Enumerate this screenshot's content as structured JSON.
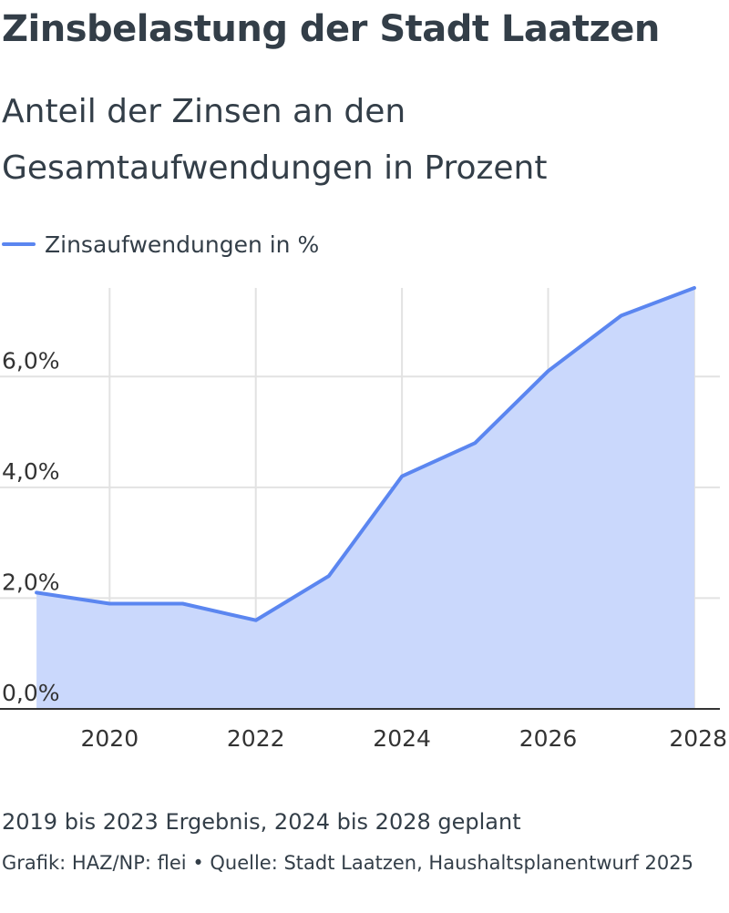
{
  "title": "Zinsbelastung der Stadt Laatzen",
  "subtitle": "Anteil der Zinsen an den Gesamtaufwendungen in Prozent",
  "legend": {
    "label": "Zinsaufwendungen in %",
    "color": "#5b86f0"
  },
  "chart_data": {
    "type": "area",
    "title": "Zinsbelastung der Stadt Laatzen",
    "subtitle": "Anteil der Zinsen an den Gesamtaufwendungen in Prozent",
    "xlabel": "",
    "ylabel": "",
    "x": [
      2019,
      2020,
      2021,
      2022,
      2023,
      2024,
      2025,
      2026,
      2027,
      2028
    ],
    "series": [
      {
        "name": "Zinsaufwendungen in %",
        "values": [
          2.1,
          1.9,
          1.9,
          1.6,
          2.4,
          4.2,
          4.8,
          6.1,
          7.1,
          7.6
        ],
        "color": "#5b86f0",
        "fill_color": "#cad8fc"
      }
    ],
    "xlim": [
      2018.5,
      2028.35
    ],
    "ylim": [
      0,
      7.6
    ],
    "x_ticks": [
      2020,
      2022,
      2024,
      2026,
      2028
    ],
    "x_tick_labels": [
      "2020",
      "2022",
      "2024",
      "2026",
      "2028"
    ],
    "y_ticks": [
      0,
      2,
      4,
      6
    ],
    "y_tick_labels": [
      "0,0%",
      "2,0%",
      "4,0%",
      "6,0%"
    ],
    "grid": true,
    "legend_position": "top-left"
  },
  "note": "2019 bis 2023 Ergebnis, 2024 bis 2028 geplant",
  "source": "Grafik: HAZ/NP: flei • Quelle: Stadt Laatzen, Haushaltsplanentwurf 2025"
}
